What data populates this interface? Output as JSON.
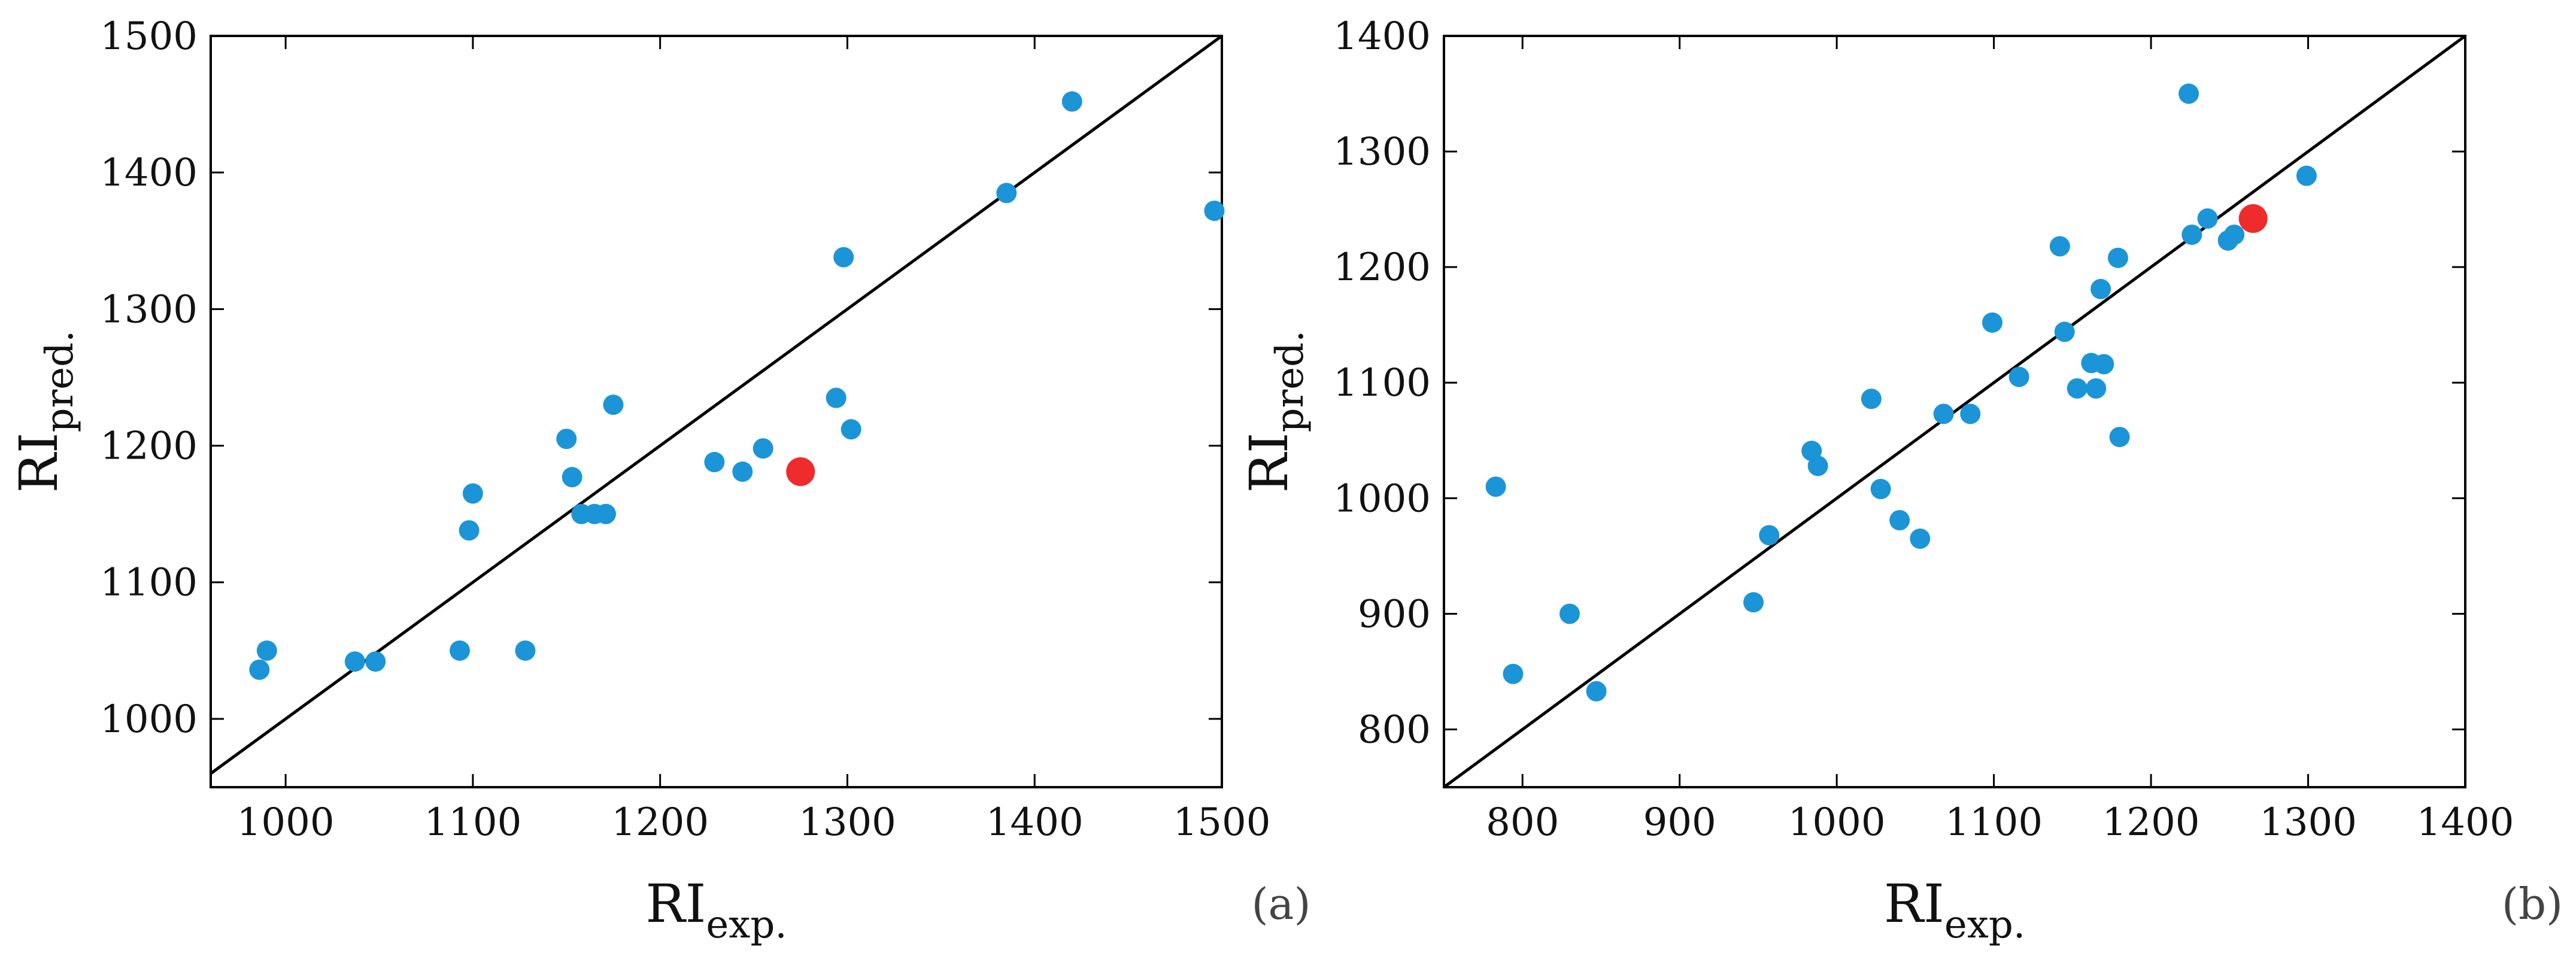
{
  "colors": {
    "point": "#1b95d8",
    "highlight": "#ef2b2b",
    "line": "#000000",
    "frame": "#000000"
  },
  "chart_data": [
    {
      "type": "scatter",
      "panel_label": "(a)",
      "xlabel": {
        "main": "RI",
        "sub": "exp."
      },
      "ylabel": {
        "main": "RI",
        "sub": "pred."
      },
      "xlim": [
        960,
        1500
      ],
      "ylim": [
        950,
        1500
      ],
      "xticks": [
        1000,
        1100,
        1200,
        1300,
        1400,
        1500
      ],
      "yticks": [
        1000,
        1100,
        1200,
        1300,
        1400,
        1500
      ],
      "reference_line": "y = x",
      "grid": false,
      "points": [
        [
          986,
          1036
        ],
        [
          990,
          1050
        ],
        [
          1037,
          1042
        ],
        [
          1048,
          1042
        ],
        [
          1093,
          1050
        ],
        [
          1098,
          1138
        ],
        [
          1100,
          1165
        ],
        [
          1128,
          1050
        ],
        [
          1150,
          1205
        ],
        [
          1153,
          1177
        ],
        [
          1158,
          1150
        ],
        [
          1165,
          1150
        ],
        [
          1171,
          1150
        ],
        [
          1175,
          1230
        ],
        [
          1229,
          1188
        ],
        [
          1244,
          1181
        ],
        [
          1255,
          1198
        ],
        [
          1294,
          1235
        ],
        [
          1298,
          1338
        ],
        [
          1302,
          1212
        ],
        [
          1385,
          1385
        ],
        [
          1420,
          1452
        ],
        [
          1496,
          1372
        ]
      ],
      "highlight_points": [
        [
          1275,
          1181
        ]
      ]
    },
    {
      "type": "scatter",
      "panel_label": "(b)",
      "xlabel": {
        "main": "RI",
        "sub": "exp."
      },
      "ylabel": {
        "main": "RI",
        "sub": "pred."
      },
      "xlim": [
        750,
        1400
      ],
      "ylim": [
        750,
        1400
      ],
      "xticks": [
        800,
        900,
        1000,
        1100,
        1200,
        1300,
        1400
      ],
      "yticks": [
        800,
        900,
        1000,
        1100,
        1200,
        1300,
        1400
      ],
      "reference_line": "y = x",
      "grid": false,
      "points": [
        [
          783,
          1010
        ],
        [
          794,
          848
        ],
        [
          830,
          900
        ],
        [
          847,
          833
        ],
        [
          947,
          910
        ],
        [
          957,
          968
        ],
        [
          984,
          1041
        ],
        [
          988,
          1028
        ],
        [
          1022,
          1086
        ],
        [
          1028,
          1008
        ],
        [
          1040,
          981
        ],
        [
          1053,
          965
        ],
        [
          1068,
          1073
        ],
        [
          1085,
          1073
        ],
        [
          1099,
          1152
        ],
        [
          1116,
          1105
        ],
        [
          1142,
          1218
        ],
        [
          1145,
          1144
        ],
        [
          1153,
          1095
        ],
        [
          1162,
          1117
        ],
        [
          1165,
          1095
        ],
        [
          1170,
          1116
        ],
        [
          1168,
          1181
        ],
        [
          1179,
          1208
        ],
        [
          1180,
          1053
        ],
        [
          1224,
          1350
        ],
        [
          1226,
          1228
        ],
        [
          1236,
          1242
        ],
        [
          1249,
          1223
        ],
        [
          1253,
          1228
        ],
        [
          1299,
          1279
        ]
      ],
      "highlight_points": [
        [
          1265,
          1242
        ]
      ]
    }
  ]
}
